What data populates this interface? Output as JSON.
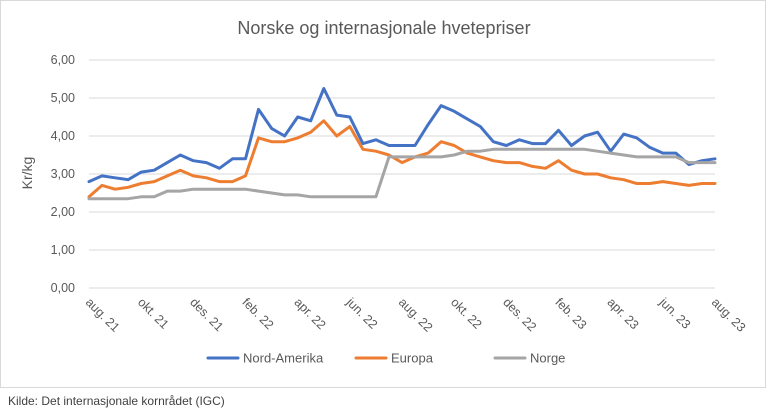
{
  "chart_data": {
    "type": "line",
    "title": "Norske og internasjonale hvetepriser",
    "ylabel": "Kr/kg",
    "xlabel": "",
    "ylim": [
      0,
      6
    ],
    "yticks": [
      "0,00",
      "1,00",
      "2,00",
      "3,00",
      "4,00",
      "5,00",
      "6,00"
    ],
    "xtick_labels": [
      "aug. 21",
      "okt. 21",
      "des. 21",
      "feb. 22",
      "apr. 22",
      "jun. 22",
      "aug. 22",
      "okt. 22",
      "des. 22",
      "feb. 23",
      "apr. 23",
      "jun. 23",
      "aug. 23"
    ],
    "grid": true,
    "legend_position": "bottom",
    "x": [
      "2021-08-01",
      "2021-08-15",
      "2021-09-01",
      "2021-09-15",
      "2021-10-01",
      "2021-10-15",
      "2021-11-01",
      "2021-11-15",
      "2021-12-01",
      "2021-12-15",
      "2022-01-01",
      "2022-01-15",
      "2022-02-01",
      "2022-02-15",
      "2022-03-01",
      "2022-03-15",
      "2022-04-01",
      "2022-04-15",
      "2022-05-01",
      "2022-05-15",
      "2022-06-01",
      "2022-06-15",
      "2022-07-01",
      "2022-07-15",
      "2022-08-01",
      "2022-08-15",
      "2022-09-01",
      "2022-09-15",
      "2022-10-01",
      "2022-10-15",
      "2022-11-01",
      "2022-11-15",
      "2022-12-01",
      "2022-12-15",
      "2023-01-01",
      "2023-01-15",
      "2023-02-01",
      "2023-02-15",
      "2023-03-01",
      "2023-03-15",
      "2023-04-01",
      "2023-04-15",
      "2023-05-01",
      "2023-05-15",
      "2023-06-01",
      "2023-06-15",
      "2023-07-01",
      "2023-07-15",
      "2023-08-01"
    ],
    "series": [
      {
        "name": "Nord-Amerika",
        "color": "#4472c4",
        "values": [
          2.8,
          2.95,
          2.9,
          2.85,
          3.05,
          3.1,
          3.3,
          3.5,
          3.35,
          3.3,
          3.15,
          3.4,
          3.4,
          4.7,
          4.2,
          4.0,
          4.5,
          4.4,
          5.25,
          4.55,
          4.5,
          3.8,
          3.9,
          3.75,
          3.75,
          3.75,
          4.3,
          4.8,
          4.65,
          4.45,
          4.25,
          3.85,
          3.75,
          3.9,
          3.8,
          3.8,
          4.15,
          3.75,
          4.0,
          4.1,
          3.6,
          4.05,
          3.95,
          3.7,
          3.55,
          3.55,
          3.25,
          3.35,
          3.4
        ]
      },
      {
        "name": "Europa",
        "color": "#ed7d31",
        "values": [
          2.4,
          2.7,
          2.6,
          2.65,
          2.75,
          2.8,
          2.95,
          3.1,
          2.95,
          2.9,
          2.8,
          2.8,
          2.95,
          3.95,
          3.85,
          3.85,
          3.95,
          4.1,
          4.4,
          4.0,
          4.25,
          3.65,
          3.6,
          3.5,
          3.3,
          3.45,
          3.55,
          3.85,
          3.75,
          3.55,
          3.45,
          3.35,
          3.3,
          3.3,
          3.2,
          3.15,
          3.35,
          3.1,
          3.0,
          3.0,
          2.9,
          2.85,
          2.75,
          2.75,
          2.8,
          2.75,
          2.7,
          2.75,
          2.75
        ]
      },
      {
        "name": "Norge",
        "color": "#a5a5a5",
        "values": [
          2.35,
          2.35,
          2.35,
          2.35,
          2.4,
          2.4,
          2.55,
          2.55,
          2.6,
          2.6,
          2.6,
          2.6,
          2.6,
          2.55,
          2.5,
          2.45,
          2.45,
          2.4,
          2.4,
          2.4,
          2.4,
          2.4,
          2.4,
          3.45,
          3.45,
          3.45,
          3.45,
          3.45,
          3.5,
          3.6,
          3.6,
          3.65,
          3.65,
          3.65,
          3.65,
          3.65,
          3.65,
          3.65,
          3.65,
          3.6,
          3.55,
          3.5,
          3.45,
          3.45,
          3.45,
          3.45,
          3.3,
          3.3,
          3.3
        ]
      }
    ]
  },
  "source": "Kilde: Det internasjonale kornrådet (IGC)"
}
